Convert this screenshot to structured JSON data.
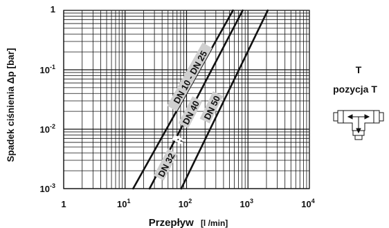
{
  "chart_data": {
    "type": "line",
    "xscale": "log",
    "yscale": "log",
    "xlim": [
      1,
      10000
    ],
    "ylim": [
      0.001,
      1
    ],
    "grid": true,
    "xlabel_main": "Przepływ",
    "xlabel_unit": "[l /min]",
    "ylabel": "Spadek ciśnienia  Δp [bar]",
    "x_ticks": [
      {
        "value": 1,
        "base": "1",
        "exp": ""
      },
      {
        "value": 10,
        "base": "10",
        "exp": "1"
      },
      {
        "value": 100,
        "base": "10",
        "exp": "2"
      },
      {
        "value": 1000,
        "base": "10",
        "exp": "3"
      },
      {
        "value": 10000,
        "base": "10",
        "exp": "4"
      }
    ],
    "y_ticks": [
      {
        "value": 1,
        "base": "1",
        "exp": ""
      },
      {
        "value": 0.1,
        "base": "10",
        "exp": "-1"
      },
      {
        "value": 0.01,
        "base": "10",
        "exp": "-2"
      },
      {
        "value": 0.001,
        "base": "10",
        "exp": "-3"
      }
    ],
    "series": [
      {
        "name": "DN 10 - DN 25",
        "x": [
          13.5,
          570
        ],
        "y": [
          0.001,
          1
        ]
      },
      {
        "name": "DN 32 ; DN 40",
        "x": [
          25,
          820
        ],
        "y": [
          0.001,
          1
        ]
      },
      {
        "name": "DN 50",
        "x": [
          82,
          2100
        ],
        "y": [
          0.001,
          1
        ]
      }
    ],
    "series_labels": [
      {
        "text": "DN 10 - DN 25",
        "series": 0,
        "x": 115,
        "y": 0.075
      },
      {
        "text": "DN 32",
        "series": 1,
        "x": 47,
        "y": 0.0025
      },
      {
        "text": ";",
        "series": 1,
        "x": 75,
        "y": 0.0066
      },
      {
        "text": "DN 40",
        "series": 1,
        "x": 118,
        "y": 0.019
      },
      {
        "text": "DN 50",
        "series": 2,
        "x": 260,
        "y": 0.023
      }
    ]
  },
  "side_panel": {
    "title": "T",
    "subtitle": "pozycja  T",
    "icon": "tee-valve-flow-icon"
  }
}
